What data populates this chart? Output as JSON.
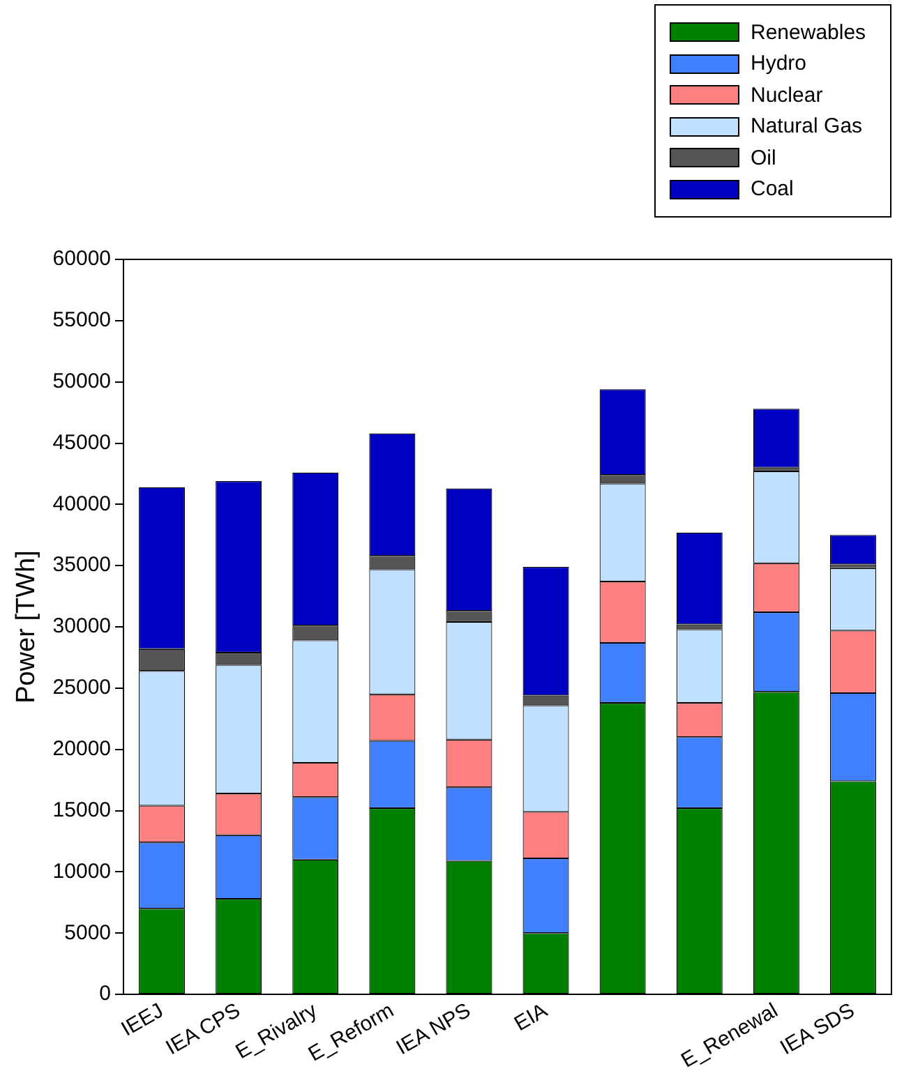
{
  "chart_data": {
    "type": "bar",
    "stacked": true,
    "ylabel": "Power [TWh]",
    "categories": [
      "IEEJ",
      "IEA CPS",
      "E_Rivalry",
      "E_Reform",
      "IEA NPS",
      "EIA",
      null,
      null,
      "E_Renewal",
      "IEA SDS"
    ],
    "series": [
      {
        "name": "Renewables",
        "color": "#008000",
        "values": [
          7000,
          7800,
          11000,
          15200,
          10900,
          5000,
          23800,
          15200,
          24700,
          17400
        ]
      },
      {
        "name": "Hydro",
        "color": "#4080ff",
        "values": [
          5400,
          5200,
          5100,
          5500,
          6000,
          6100,
          4900,
          5800,
          6500,
          7200
        ]
      },
      {
        "name": "Nuclear",
        "color": "#ff8080",
        "values": [
          3000,
          3400,
          2800,
          3800,
          3900,
          3800,
          5000,
          2800,
          4000,
          5100
        ]
      },
      {
        "name": "Natural Gas",
        "color": "#c0e0ff",
        "values": [
          11000,
          10500,
          10000,
          10200,
          9600,
          8700,
          8000,
          6000,
          7500,
          5100
        ]
      },
      {
        "name": "Oil",
        "color": "#555555",
        "values": [
          1800,
          1000,
          1200,
          1100,
          900,
          800,
          700,
          400,
          300,
          300
        ]
      },
      {
        "name": "Coal",
        "color": "#0000c0",
        "values": [
          13200,
          14000,
          12500,
          10000,
          10000,
          10500,
          7000,
          7500,
          4800,
          2400
        ]
      }
    ],
    "ylim": [
      0,
      60000
    ],
    "yticks": [
      0,
      5000,
      10000,
      15000,
      20000,
      25000,
      30000,
      35000,
      40000,
      45000,
      50000,
      55000,
      60000
    ],
    "legend": "top right"
  }
}
